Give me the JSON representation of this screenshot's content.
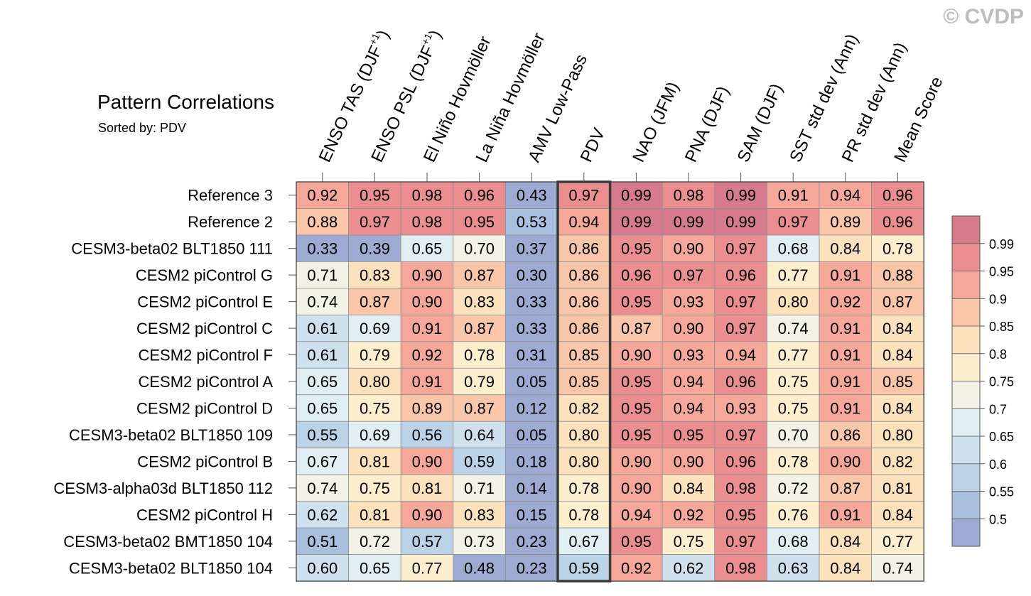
{
  "copyright": "© CVDP",
  "chart_data": {
    "type": "heatmap",
    "title": "Pattern Correlations",
    "subtitle": "Sorted by: PDV",
    "columns": [
      "ENSO TAS (DJF+1)",
      "ENSO PSL (DJF+1)",
      "El Niño Hovmöller",
      "La Niña Hovmöller",
      "AMV Low-Pass",
      "PDV",
      "NAO (JFM)",
      "PNA (DJF)",
      "SAM (DJF)",
      "SST std dev (Ann)",
      "PR std dev (Ann)",
      "Mean Score"
    ],
    "column_labels": [
      {
        "main": "ENSO TAS (DJF",
        "sup": "+1",
        "tail": ")"
      },
      {
        "main": "ENSO PSL (DJF",
        "sup": "+1",
        "tail": ")"
      },
      {
        "main": "El Niño Hovmöller",
        "sup": "",
        "tail": ""
      },
      {
        "main": "La Niña Hovmöller",
        "sup": "",
        "tail": ""
      },
      {
        "main": "AMV Low-Pass",
        "sup": "",
        "tail": ""
      },
      {
        "main": "PDV",
        "sup": "",
        "tail": ""
      },
      {
        "main": "NAO (JFM)",
        "sup": "",
        "tail": ""
      },
      {
        "main": "PNA (DJF)",
        "sup": "",
        "tail": ""
      },
      {
        "main": "SAM (DJF)",
        "sup": "",
        "tail": ""
      },
      {
        "main": "SST std dev (Ann)",
        "sup": "",
        "tail": ""
      },
      {
        "main": "PR std dev (Ann)",
        "sup": "",
        "tail": ""
      },
      {
        "main": "Mean Score",
        "sup": "",
        "tail": ""
      }
    ],
    "rows": [
      "Reference 3",
      "Reference 2",
      "CESM3-beta02 BLT1850 111",
      "CESM2 piControl G",
      "CESM2 piControl E",
      "CESM2 piControl C",
      "CESM2 piControl F",
      "CESM2 piControl A",
      "CESM2 piControl D",
      "CESM3-beta02 BLT1850 109",
      "CESM2 piControl B",
      "CESM3-alpha03d BLT1850 112",
      "CESM2 piControl H",
      "CESM3-beta02 BMT1850 104",
      "CESM3-beta02 BLT1850 104"
    ],
    "values": [
      [
        0.92,
        0.95,
        0.98,
        0.96,
        0.43,
        0.97,
        0.99,
        0.98,
        0.99,
        0.91,
        0.94,
        0.96
      ],
      [
        0.88,
        0.97,
        0.98,
        0.95,
        0.53,
        0.94,
        0.99,
        0.99,
        0.99,
        0.97,
        0.89,
        0.96
      ],
      [
        0.33,
        0.39,
        0.65,
        0.7,
        0.37,
        0.86,
        0.95,
        0.9,
        0.97,
        0.68,
        0.84,
        0.78
      ],
      [
        0.71,
        0.83,
        0.9,
        0.87,
        0.3,
        0.86,
        0.96,
        0.97,
        0.96,
        0.77,
        0.91,
        0.88
      ],
      [
        0.74,
        0.87,
        0.9,
        0.83,
        0.33,
        0.86,
        0.95,
        0.93,
        0.97,
        0.8,
        0.92,
        0.87
      ],
      [
        0.61,
        0.69,
        0.91,
        0.87,
        0.33,
        0.86,
        0.87,
        0.9,
        0.97,
        0.74,
        0.91,
        0.84
      ],
      [
        0.61,
        0.79,
        0.92,
        0.78,
        0.31,
        0.85,
        0.9,
        0.93,
        0.94,
        0.77,
        0.91,
        0.84
      ],
      [
        0.65,
        0.8,
        0.91,
        0.79,
        0.05,
        0.85,
        0.95,
        0.94,
        0.96,
        0.75,
        0.91,
        0.85
      ],
      [
        0.65,
        0.75,
        0.89,
        0.87,
        0.12,
        0.82,
        0.95,
        0.94,
        0.93,
        0.75,
        0.91,
        0.84
      ],
      [
        0.55,
        0.69,
        0.56,
        0.64,
        0.05,
        0.8,
        0.95,
        0.95,
        0.97,
        0.7,
        0.86,
        0.8
      ],
      [
        0.67,
        0.81,
        0.9,
        0.59,
        0.18,
        0.8,
        0.9,
        0.9,
        0.96,
        0.78,
        0.9,
        0.82
      ],
      [
        0.74,
        0.75,
        0.81,
        0.71,
        0.14,
        0.78,
        0.9,
        0.84,
        0.98,
        0.72,
        0.87,
        0.81
      ],
      [
        0.62,
        0.81,
        0.9,
        0.83,
        0.15,
        0.78,
        0.94,
        0.92,
        0.95,
        0.76,
        0.91,
        0.84
      ],
      [
        0.51,
        0.72,
        0.57,
        0.73,
        0.23,
        0.67,
        0.95,
        0.75,
        0.97,
        0.68,
        0.84,
        0.77
      ],
      [
        0.6,
        0.65,
        0.77,
        0.48,
        0.23,
        0.59,
        0.92,
        0.62,
        0.98,
        0.63,
        0.84,
        0.74
      ]
    ],
    "highlight_column": "PDV",
    "colorbar": {
      "levels": [
        0.5,
        0.55,
        0.6,
        0.65,
        0.7,
        0.75,
        0.8,
        0.85,
        0.9,
        0.95,
        0.99
      ],
      "labels": [
        "0.5",
        "0.55",
        "0.6",
        "0.65",
        "0.7",
        "0.75",
        "0.8",
        "0.85",
        "0.9",
        "0.95",
        "0.99"
      ],
      "colors": [
        "#9dabd3",
        "#aabfdd",
        "#bcd2e6",
        "#cee1ed",
        "#e1eef4",
        "#f2f2e7",
        "#fdefce",
        "#fce1bd",
        "#f9c6a9",
        "#f5a89a",
        "#ea8e8f",
        "#d67b8d"
      ]
    }
  }
}
